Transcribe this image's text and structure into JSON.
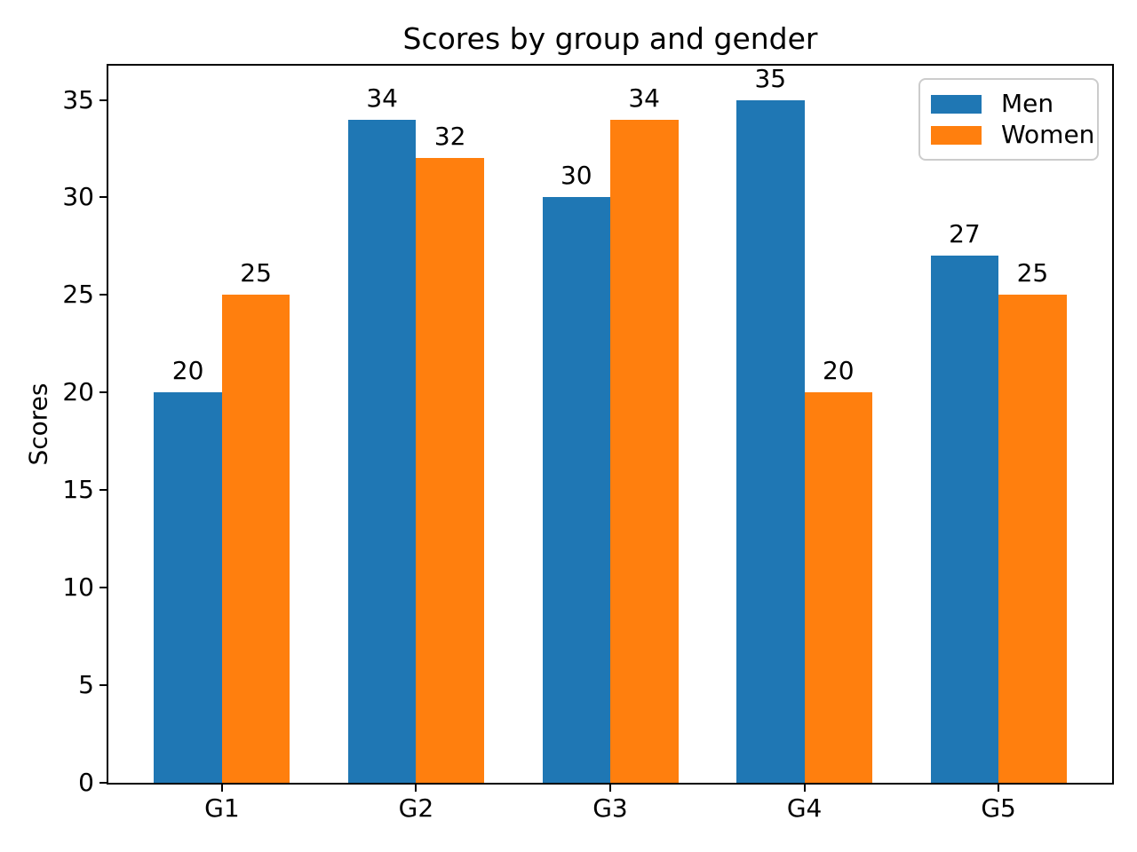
{
  "chart_data": {
    "type": "bar",
    "title": "Scores by group and gender",
    "ylabel": "Scores",
    "xlabel": "",
    "categories": [
      "G1",
      "G2",
      "G3",
      "G4",
      "G5"
    ],
    "series": [
      {
        "name": "Men",
        "color": "#1f77b4",
        "values": [
          20,
          34,
          30,
          35,
          27
        ]
      },
      {
        "name": "Women",
        "color": "#ff7f0e",
        "values": [
          25,
          32,
          34,
          20,
          25
        ]
      }
    ],
    "bar_value_labels_shown": true,
    "yticks": [
      "0",
      "5",
      "10",
      "15",
      "20",
      "25",
      "30",
      "35"
    ],
    "ylim": [
      0,
      36.75
    ],
    "grid": false,
    "legend": {
      "position": "upper right",
      "entries": [
        "Men",
        "Women"
      ]
    }
  },
  "colors": {
    "background": "#ffffff",
    "axis": "#000000",
    "text": "#000000",
    "legend_border": "#cccccc"
  }
}
